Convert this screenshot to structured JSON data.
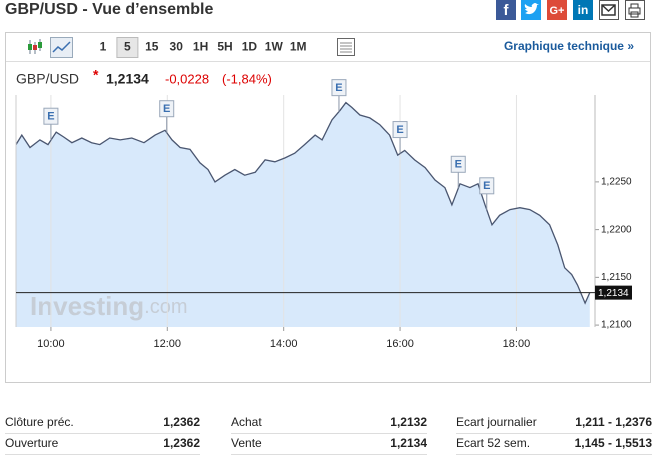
{
  "header": {
    "title": "GBP/USD - Vue d’ensemble",
    "share": [
      "G+",
      "in"
    ]
  },
  "toolbar": {
    "intervals": [
      "1",
      "5",
      "15",
      "30",
      "1H",
      "5H",
      "1D",
      "1W",
      "1M"
    ],
    "active": "5",
    "link": "Graphique technique »"
  },
  "quote": {
    "symbol": "GBP/USD",
    "marker": "*",
    "last": "1,2134",
    "change": "-0,0228",
    "change_pct": "(-1,84%)"
  },
  "chart_data": {
    "type": "area",
    "x": [
      9.4,
      9.5,
      9.64,
      9.81,
      9.95,
      10.09,
      10.22,
      10.36,
      10.53,
      10.7,
      10.84,
      11.01,
      11.19,
      11.39,
      11.6,
      11.79,
      11.96,
      12.08,
      12.22,
      12.39,
      12.56,
      12.7,
      12.82,
      12.99,
      13.16,
      13.33,
      13.51,
      13.68,
      13.85,
      14.02,
      14.19,
      14.36,
      14.54,
      14.66,
      14.83,
      14.97,
      15.07,
      15.17,
      15.31,
      15.48,
      15.65,
      15.82,
      15.96,
      16.08,
      16.25,
      16.43,
      16.6,
      16.77,
      16.89,
      17.03,
      17.2,
      17.34,
      17.46,
      17.58,
      17.71,
      17.89,
      18.06,
      18.23,
      18.4,
      18.57,
      18.71,
      18.83,
      18.95,
      19.05,
      19.18,
      19.26
    ],
    "values": [
      1.2289,
      1.2299,
      1.2286,
      1.2294,
      1.2289,
      1.2302,
      1.2297,
      1.2291,
      1.2296,
      1.2291,
      1.2289,
      1.2296,
      1.2294,
      1.2296,
      1.2291,
      1.2299,
      1.2304,
      1.2294,
      1.2286,
      1.2284,
      1.227,
      1.2263,
      1.225,
      1.2257,
      1.2263,
      1.2257,
      1.226,
      1.2273,
      1.2271,
      1.2275,
      1.228,
      1.2289,
      1.2299,
      1.2294,
      1.2315,
      1.2325,
      1.2333,
      1.2328,
      1.232,
      1.2317,
      1.231,
      1.2299,
      1.2278,
      1.2283,
      1.2273,
      1.2265,
      1.2252,
      1.2244,
      1.2226,
      1.2248,
      1.2244,
      1.2248,
      1.2226,
      1.2205,
      1.2215,
      1.2221,
      1.2223,
      1.2221,
      1.2215,
      1.2205,
      1.2184,
      1.216,
      1.2153,
      1.2142,
      1.2123,
      1.2134
    ],
    "color": "#4a5670",
    "fill": "#d8e9fb",
    "xlim": [
      9.4,
      19.35
    ],
    "ylim": [
      1.2098,
      1.2341
    ],
    "xticks": [
      {
        "value": 10,
        "label": "10:00"
      },
      {
        "value": 12,
        "label": "12:00"
      },
      {
        "value": 14,
        "label": "14:00"
      },
      {
        "value": 16,
        "label": "16:00"
      },
      {
        "value": 18,
        "label": "18:00"
      }
    ],
    "yticks": [
      {
        "value": 1.21,
        "label": "1,2100"
      },
      {
        "value": 1.215,
        "label": "1,2150"
      },
      {
        "value": 1.22,
        "label": "1,2200"
      },
      {
        "value": 1.225,
        "label": "1,2250"
      }
    ],
    "grid": "x",
    "y_axis": "right",
    "price_line": {
      "value": 1.2134,
      "label": "1,2134"
    },
    "events": [
      {
        "x": 10.0,
        "label": "E"
      },
      {
        "x": 11.99,
        "label": "E"
      },
      {
        "x": 14.95,
        "label": "E"
      },
      {
        "x": 16.0,
        "label": "E"
      },
      {
        "x": 17.0,
        "label": "E"
      },
      {
        "x": 17.49,
        "label": "E"
      }
    ],
    "watermark": [
      "Investing",
      ".com"
    ]
  },
  "stats": {
    "rows": [
      [
        "Clôture préc.",
        "1,2362",
        "Achat",
        "1,2132",
        "Ecart journalier",
        "1,211 - 1,2376"
      ],
      [
        "Ouverture",
        "1,2362",
        "Vente",
        "1,2134",
        "Ecart 52 sem.",
        "1,145 - 1,5513"
      ]
    ]
  }
}
